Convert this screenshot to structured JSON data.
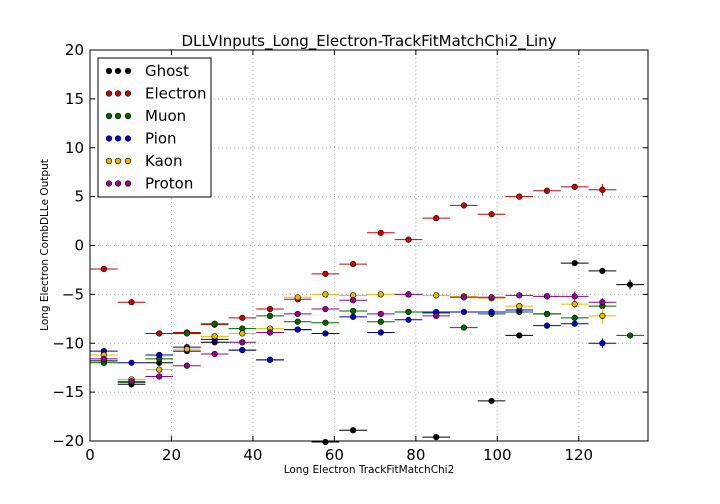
{
  "chart_data": {
    "type": "scatter",
    "title": "DLLVInputs_Long_Electron-TrackFitMatchChi2_Liny",
    "xlabel": "Long Electron TrackFitMatchChi2",
    "ylabel": "Long Electron CombDLLe Output",
    "xlim": [
      0,
      137
    ],
    "ylim": [
      -20,
      20
    ],
    "xticks": [
      "0",
      "20",
      "40",
      "60",
      "80",
      "100",
      "120"
    ],
    "yticks": [
      "−20",
      "−15",
      "−10",
      "−5",
      "0",
      "5",
      "10",
      "15",
      "20"
    ],
    "grid": true,
    "legend_position": "top-left",
    "bin_half_width": 3.4,
    "series": [
      {
        "name": "Ghost",
        "color": "#000000",
        "x": [
          3.4,
          10.2,
          17.0,
          23.8,
          30.6,
          37.4,
          44.2,
          51.0,
          57.8,
          64.6,
          85.0,
          98.6,
          105.4,
          112.2,
          119.0,
          125.8,
          132.6
        ],
        "y": [
          -11.8,
          -14.2,
          -12.0,
          -10.8,
          -9.9,
          -10.7,
          -11.7,
          -8.6,
          -20.1,
          -18.9,
          -19.6,
          -15.9,
          -9.2,
          -7.0,
          -1.8,
          -2.6,
          -4.0
        ],
        "yerr": [
          0.3,
          0.3,
          0.3,
          0.3,
          0.3,
          0.3,
          0.3,
          0.3,
          0.3,
          0.3,
          0.3,
          0.3,
          0.3,
          0.3,
          0.3,
          0.3,
          0.5
        ]
      },
      {
        "name": "Electron",
        "color": "#cc0000",
        "x": [
          3.4,
          10.2,
          17.0,
          23.8,
          30.6,
          37.4,
          44.2,
          51.0,
          57.8,
          64.6,
          71.4,
          78.2,
          85.0,
          91.8,
          98.6,
          105.4,
          112.2,
          119.0,
          125.8
        ],
        "y": [
          -2.4,
          -5.8,
          -9.0,
          -8.9,
          -8.1,
          -7.4,
          -6.5,
          -5.5,
          -2.9,
          -1.9,
          1.3,
          0.6,
          2.8,
          4.1,
          3.2,
          5.0,
          5.6,
          6.0,
          5.7
        ],
        "yerr": [
          0.2,
          0.2,
          0.2,
          0.2,
          0.2,
          0.2,
          0.2,
          0.2,
          0.2,
          0.2,
          0.2,
          0.2,
          0.2,
          0.2,
          0.2,
          0.2,
          0.3,
          0.3,
          0.6
        ]
      },
      {
        "name": "Muon",
        "color": "#006600",
        "x": [
          3.4,
          10.2,
          17.0,
          23.8,
          30.6,
          37.4,
          44.2,
          51.0,
          57.8,
          64.6,
          71.4,
          78.2,
          85.0,
          91.8,
          98.6,
          105.4,
          112.2,
          119.0,
          125.8,
          132.6
        ],
        "y": [
          -12.0,
          -14.0,
          -11.6,
          -9.0,
          -8.0,
          -8.5,
          -7.2,
          -7.8,
          -7.9,
          -6.7,
          -7.8,
          -6.8,
          -6.9,
          -8.4,
          -7.0,
          -6.8,
          -7.0,
          -7.4,
          -6.2,
          -9.2
        ],
        "yerr": [
          0.2,
          0.2,
          0.2,
          0.2,
          0.2,
          0.2,
          0.2,
          0.2,
          0.2,
          0.2,
          0.2,
          0.2,
          0.2,
          0.2,
          0.2,
          0.2,
          0.2,
          0.3,
          0.3,
          0.3
        ]
      },
      {
        "name": "Pion",
        "color": "#0000cc",
        "x": [
          3.4,
          10.2,
          17.0,
          23.8,
          30.6,
          37.4,
          44.2,
          51.0,
          57.8,
          64.6,
          71.4,
          78.2,
          85.0,
          91.8,
          98.6,
          105.4,
          112.2,
          119.0,
          125.8
        ],
        "y": [
          -10.8,
          -12.0,
          -11.2,
          -10.4,
          -9.6,
          -10.7,
          -11.7,
          -8.6,
          -9.0,
          -7.3,
          -8.9,
          -7.6,
          -6.8,
          -6.8,
          -6.8,
          -6.6,
          -8.2,
          -8.0,
          -10.0
        ],
        "yerr": [
          0.2,
          0.2,
          0.2,
          0.2,
          0.2,
          0.2,
          0.2,
          0.2,
          0.2,
          0.2,
          0.2,
          0.2,
          0.2,
          0.2,
          0.2,
          0.2,
          0.3,
          0.3,
          0.5
        ]
      },
      {
        "name": "Kaon",
        "color": "#e6b800",
        "x": [
          3.4,
          10.2,
          17.0,
          23.8,
          30.6,
          37.4,
          44.2,
          51.0,
          57.8,
          64.6,
          71.4,
          78.2,
          85.0,
          91.8,
          98.6,
          105.4,
          112.2,
          119.0,
          125.8
        ],
        "y": [
          -11.2,
          -13.7,
          -12.7,
          -10.6,
          -9.3,
          -9.0,
          -8.5,
          -5.3,
          -5.0,
          -5.1,
          -5.0,
          -5.0,
          -5.1,
          -5.2,
          -5.4,
          -6.2,
          -5.2,
          -6.0,
          -7.2
        ],
        "yerr": [
          0.2,
          0.2,
          0.2,
          0.2,
          0.2,
          0.2,
          0.2,
          0.2,
          0.2,
          0.2,
          0.2,
          0.2,
          0.2,
          0.2,
          0.2,
          0.2,
          0.3,
          0.4,
          0.8
        ]
      },
      {
        "name": "Proton",
        "color": "#990099",
        "x": [
          3.4,
          10.2,
          17.0,
          23.8,
          30.6,
          37.4,
          44.2,
          51.0,
          57.8,
          64.6,
          71.4,
          78.2,
          85.0,
          91.8,
          98.6,
          105.4,
          112.2,
          119.0,
          125.8
        ],
        "y": [
          -11.6,
          -13.9,
          -13.4,
          -12.3,
          -11.1,
          -9.9,
          -8.9,
          -7.0,
          -6.5,
          -5.6,
          -7.0,
          -5.0,
          -7.2,
          -5.3,
          -5.3,
          -5.1,
          -5.2,
          -5.2,
          -5.8
        ],
        "yerr": [
          0.2,
          0.2,
          0.2,
          0.2,
          0.2,
          0.2,
          0.2,
          0.2,
          0.2,
          0.2,
          0.2,
          0.2,
          0.2,
          0.2,
          0.2,
          0.2,
          0.3,
          0.5,
          0.4
        ]
      }
    ]
  }
}
